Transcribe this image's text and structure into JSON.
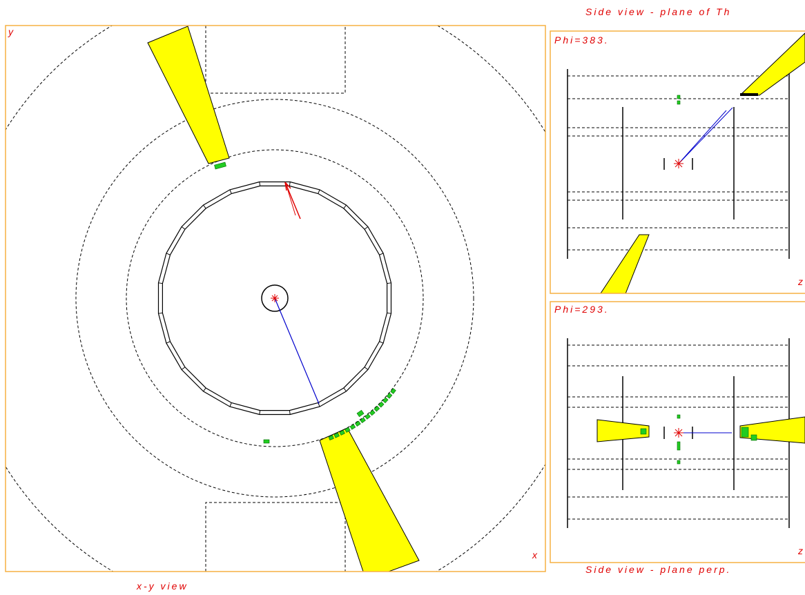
{
  "header": {
    "title": "Side view - plane of Th"
  },
  "xy_view": {
    "y_label": "y",
    "x_label": "x",
    "caption": "x-y view"
  },
  "side_top": {
    "label": "Phi=383.",
    "axis_label": "z"
  },
  "side_bottom": {
    "label": "Phi=293.",
    "axis_label": "z"
  },
  "footer": {
    "caption": "Side view - plane perp."
  }
}
